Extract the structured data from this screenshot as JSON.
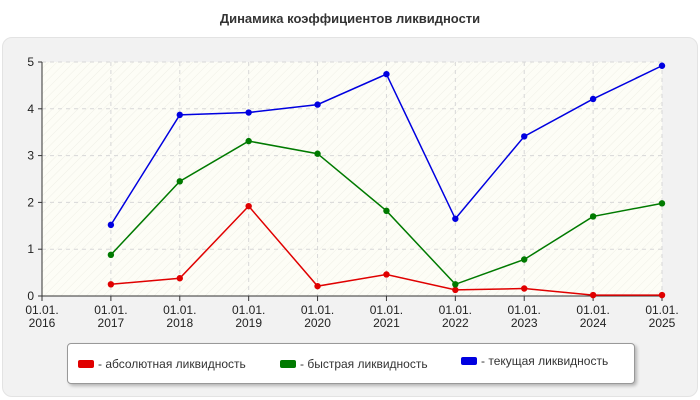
{
  "chart_data": {
    "type": "line",
    "title": "Динамика коэффициентов ликвидности",
    "xlabel": "",
    "ylabel": "",
    "categories": [
      "01.01.\n2016",
      "01.01.\n2017",
      "01.01.\n2018",
      "01.01.\n2019",
      "01.01.\n2020",
      "01.01.\n2021",
      "01.01.\n2022",
      "01.01.\n2023",
      "01.01.\n2024",
      "01.01.\n2025"
    ],
    "ylim": [
      0,
      5
    ],
    "yticks": [
      0,
      1,
      2,
      3,
      4,
      5
    ],
    "grid": true,
    "legend_position": "bottom",
    "series": [
      {
        "name": "- абсолютная ликвидность",
        "color": "#e00000",
        "values": [
          null,
          0.25,
          0.38,
          1.92,
          0.21,
          0.46,
          0.13,
          0.16,
          0.02,
          0.02
        ]
      },
      {
        "name": "- быстрая ликвидность",
        "color": "#007a00",
        "values": [
          null,
          0.88,
          2.45,
          3.31,
          3.04,
          1.82,
          0.25,
          0.78,
          1.7,
          1.98
        ]
      },
      {
        "name": "- текущая ликвидность",
        "color": "#0000e0",
        "values": [
          null,
          1.52,
          3.87,
          3.92,
          4.09,
          4.74,
          1.65,
          3.41,
          4.21,
          4.92
        ]
      }
    ]
  }
}
